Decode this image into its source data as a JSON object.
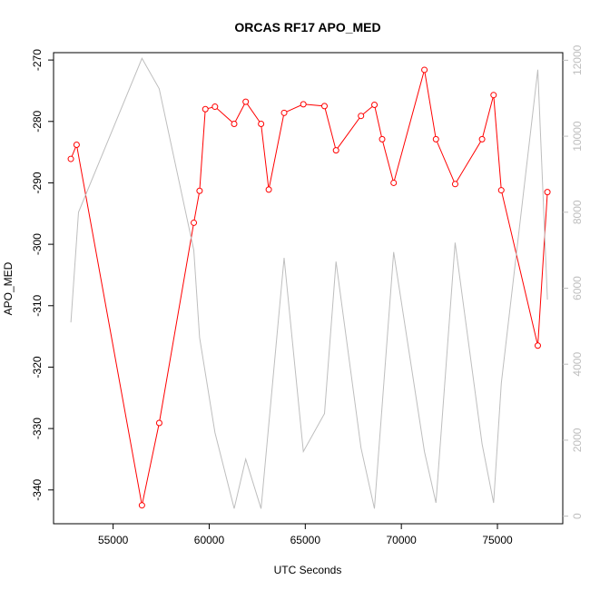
{
  "chart_data": {
    "type": "line",
    "title": "ORCAS RF17 APO_MED",
    "xlabel": "UTC Seconds",
    "ylabel": "APO_MED",
    "xlim": [
      51900,
      78400
    ],
    "ylim": [
      -345.5,
      -268.8
    ],
    "y2lim": [
      -200,
      12200
    ],
    "xticks": [
      55000,
      60000,
      65000,
      70000,
      75000
    ],
    "xtick_labels": [
      "55000",
      "60000",
      "65000",
      "70000",
      "75000"
    ],
    "yticks": [
      -340,
      -330,
      -320,
      -310,
      -300,
      -290,
      -280,
      -270
    ],
    "ytick_labels": [
      "-340",
      "-330",
      "-320",
      "-310",
      "-300",
      "-290",
      "-280",
      "-270"
    ],
    "y2ticks": [
      0,
      2000,
      4000,
      6000,
      8000,
      10000,
      12000
    ],
    "y2tick_labels": [
      "0",
      "2000",
      "4000",
      "6000",
      "8000",
      "10000",
      "12000"
    ],
    "grid": false,
    "colors": {
      "primary": "#ff0000",
      "secondary": "#bebebe"
    },
    "series": [
      {
        "axis": "left",
        "style": "line+points",
        "x": [
          52800,
          53100,
          56500,
          57400,
          59200,
          59500,
          59800,
          60300,
          61300,
          61900,
          62700,
          63100,
          63900,
          64900,
          66000,
          66600,
          67900,
          68600,
          69000,
          69600,
          71200,
          71800,
          72800,
          74200,
          74800,
          75200,
          77100,
          77600
        ],
        "y": [
          -286.1,
          -283.8,
          -342.5,
          -329.1,
          -296.5,
          -291.3,
          -278.0,
          -277.6,
          -280.4,
          -276.8,
          -280.4,
          -291.1,
          -278.6,
          -277.2,
          -277.5,
          -284.7,
          -279.1,
          -277.3,
          -282.9,
          -290.0,
          -271.6,
          -282.9,
          -290.2,
          -282.9,
          -275.7,
          -291.2,
          -316.5,
          -291.5
        ]
      },
      {
        "axis": "right",
        "style": "line",
        "x": [
          52800,
          53200,
          56500,
          57400,
          59200,
          59500,
          60300,
          61300,
          61900,
          62700,
          63900,
          64900,
          66000,
          66600,
          67900,
          68600,
          69600,
          71200,
          71800,
          72800,
          74200,
          74800,
          75200,
          77100,
          77600
        ],
        "y": [
          5100,
          8000,
          12050,
          11250,
          7000,
          4700,
          2200,
          200,
          1500,
          200,
          6800,
          1700,
          2700,
          6700,
          1800,
          200,
          6950,
          1700,
          350,
          7200,
          1900,
          350,
          3500,
          11750,
          5700
        ]
      }
    ]
  }
}
